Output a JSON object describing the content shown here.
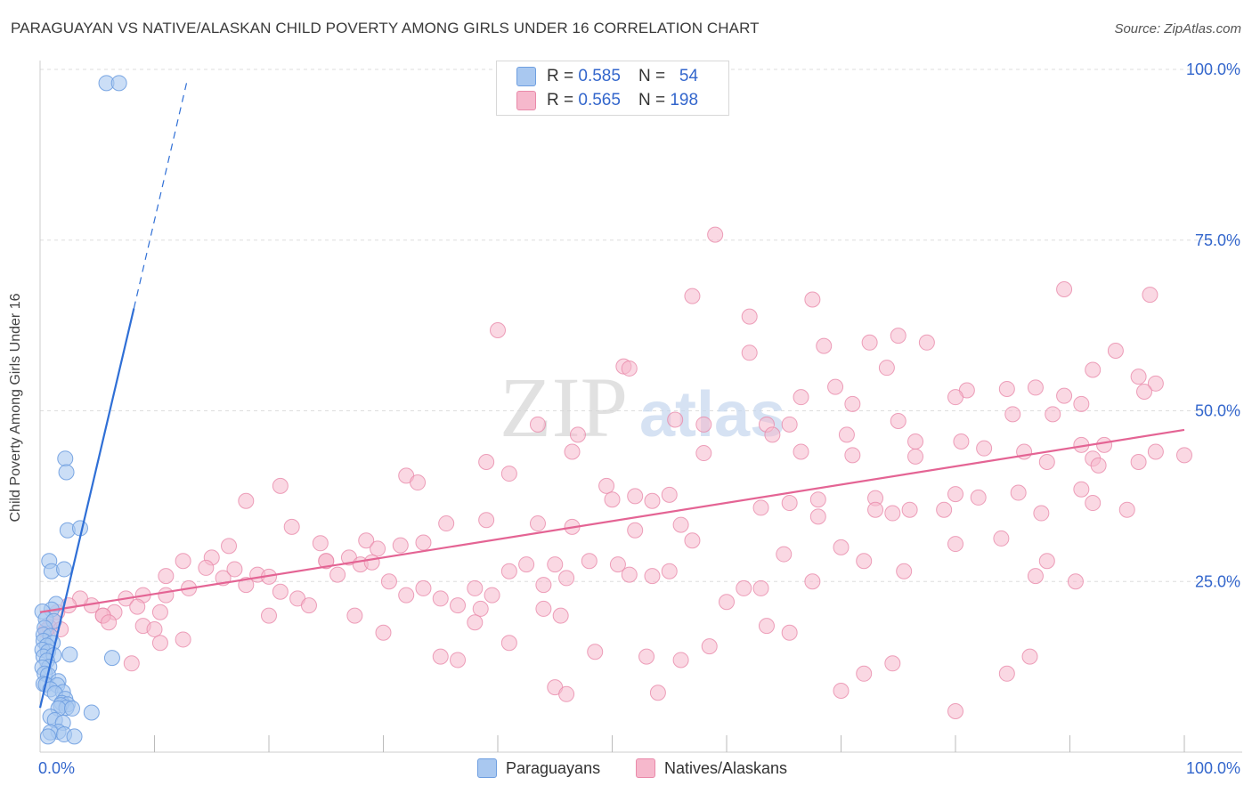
{
  "title": "PARAGUAYAN VS NATIVE/ALASKAN CHILD POVERTY AMONG GIRLS UNDER 16 CORRELATION CHART",
  "source": "Source: ZipAtlas.com",
  "watermark": {
    "zip": "ZIP",
    "atlas": "atlas"
  },
  "legend_top": [
    {
      "r_label": "R =",
      "r_value": "0.585",
      "n_label": "N =",
      "n_value": "54"
    },
    {
      "r_label": "R =",
      "r_value": "0.565",
      "n_label": "N =",
      "n_value": "198"
    }
  ],
  "legend_bottom": [
    "Paraguayans",
    "Natives/Alaskans"
  ],
  "colors": {
    "blue_fill": "#a9c8f0",
    "blue_stroke": "#6f9fe0",
    "blue_line": "#2f6fd6",
    "pink_fill": "#f6b8cc",
    "pink_stroke": "#e98aaa",
    "pink_line": "#e46494",
    "grid": "#dedede",
    "tick_text": "#3366cc"
  },
  "chart_data": {
    "type": "scatter",
    "title": "PARAGUAYAN VS NATIVE/ALASKAN CHILD POVERTY AMONG GIRLS UNDER 16 CORRELATION CHART",
    "xlabel": "",
    "ylabel": "Child Poverty Among Girls Under 16",
    "xlim": [
      0,
      100
    ],
    "ylim": [
      0,
      100
    ],
    "x_tick_labels": [
      "0.0%",
      "100.0%"
    ],
    "y_tick_labels": [
      "25.0%",
      "50.0%",
      "75.0%",
      "100.0%"
    ],
    "y_ticks": [
      25,
      50,
      75,
      100
    ],
    "series": [
      {
        "name": "Paraguayans",
        "r": 0.585,
        "n": 54,
        "trend": {
          "x0": 0.0,
          "y0": 6.5,
          "x1": 8.2,
          "y1": 65.0,
          "dash_x1": 12.8,
          "dash_y1": 98.0
        },
        "points": [
          [
            5.8,
            98.0
          ],
          [
            6.9,
            98.0
          ],
          [
            2.2,
            43.0
          ],
          [
            2.3,
            41.0
          ],
          [
            2.4,
            32.5
          ],
          [
            3.5,
            32.8
          ],
          [
            0.8,
            28.0
          ],
          [
            1.0,
            26.5
          ],
          [
            2.1,
            26.8
          ],
          [
            1.4,
            21.7
          ],
          [
            1.0,
            20.9
          ],
          [
            0.2,
            20.6
          ],
          [
            0.5,
            19.5
          ],
          [
            1.2,
            19.2
          ],
          [
            0.4,
            18.2
          ],
          [
            0.3,
            17.2
          ],
          [
            0.9,
            17.0
          ],
          [
            0.3,
            16.3
          ],
          [
            1.1,
            16.0
          ],
          [
            0.6,
            15.6
          ],
          [
            0.2,
            15.0
          ],
          [
            0.7,
            14.7
          ],
          [
            0.3,
            14.0
          ],
          [
            1.2,
            14.2
          ],
          [
            2.6,
            14.3
          ],
          [
            6.3,
            13.8
          ],
          [
            0.6,
            13.4
          ],
          [
            0.8,
            12.5
          ],
          [
            0.2,
            12.4
          ],
          [
            0.4,
            11.5
          ],
          [
            0.7,
            11.3
          ],
          [
            1.6,
            10.4
          ],
          [
            0.3,
            10.0
          ],
          [
            0.5,
            9.9
          ],
          [
            1.5,
            9.8
          ],
          [
            0.9,
            9.2
          ],
          [
            2.0,
            8.8
          ],
          [
            1.3,
            8.6
          ],
          [
            2.2,
            7.8
          ],
          [
            1.9,
            7.2
          ],
          [
            2.4,
            7.0
          ],
          [
            1.8,
            6.9
          ],
          [
            2.3,
            6.5
          ],
          [
            1.6,
            6.4
          ],
          [
            2.8,
            6.4
          ],
          [
            4.5,
            5.8
          ],
          [
            0.9,
            5.2
          ],
          [
            1.3,
            4.7
          ],
          [
            2.0,
            4.3
          ],
          [
            1.6,
            3.0
          ],
          [
            0.9,
            2.9
          ],
          [
            2.1,
            2.6
          ],
          [
            3.0,
            2.3
          ],
          [
            0.7,
            2.3
          ]
        ]
      },
      {
        "name": "Natives/Alaskans",
        "r": 0.565,
        "n": 198,
        "trend": {
          "x0": 0.0,
          "y0": 20.5,
          "x1": 100.0,
          "y1": 47.2
        },
        "points": [
          [
            59.0,
            75.8
          ],
          [
            57.0,
            66.8
          ],
          [
            97.0,
            67.0
          ],
          [
            67.5,
            66.3
          ],
          [
            89.5,
            67.8
          ],
          [
            62.0,
            63.8
          ],
          [
            40.0,
            61.8
          ],
          [
            75.0,
            61.0
          ],
          [
            72.5,
            60.0
          ],
          [
            77.5,
            60.0
          ],
          [
            68.5,
            59.5
          ],
          [
            62.0,
            58.5
          ],
          [
            94.0,
            58.8
          ],
          [
            51.0,
            56.5
          ],
          [
            51.5,
            56.2
          ],
          [
            92.0,
            56.0
          ],
          [
            74.0,
            56.3
          ],
          [
            97.5,
            54.0
          ],
          [
            96.0,
            55.0
          ],
          [
            69.5,
            53.5
          ],
          [
            81.0,
            53.0
          ],
          [
            84.5,
            53.2
          ],
          [
            87.0,
            53.4
          ],
          [
            96.5,
            52.8
          ],
          [
            89.5,
            52.2
          ],
          [
            66.5,
            52.0
          ],
          [
            80.0,
            52.0
          ],
          [
            91.0,
            51.0
          ],
          [
            85.0,
            49.5
          ],
          [
            88.5,
            49.5
          ],
          [
            71.0,
            51.0
          ],
          [
            55.5,
            48.7
          ],
          [
            58.0,
            48.0
          ],
          [
            63.5,
            48.0
          ],
          [
            65.5,
            48.0
          ],
          [
            75.0,
            48.5
          ],
          [
            43.5,
            48.0
          ],
          [
            47.0,
            46.5
          ],
          [
            64.0,
            46.5
          ],
          [
            70.5,
            46.5
          ],
          [
            76.5,
            45.5
          ],
          [
            80.5,
            45.5
          ],
          [
            82.5,
            44.5
          ],
          [
            86.0,
            44.0
          ],
          [
            91.0,
            45.0
          ],
          [
            93.0,
            45.0
          ],
          [
            97.5,
            44.0
          ],
          [
            100.0,
            43.5
          ],
          [
            92.0,
            43.0
          ],
          [
            96.0,
            42.5
          ],
          [
            88.0,
            42.5
          ],
          [
            92.5,
            42.0
          ],
          [
            71.0,
            43.5
          ],
          [
            76.5,
            43.3
          ],
          [
            66.5,
            44.0
          ],
          [
            58.0,
            43.8
          ],
          [
            39.0,
            42.5
          ],
          [
            46.5,
            44.0
          ],
          [
            32.0,
            40.5
          ],
          [
            41.0,
            40.8
          ],
          [
            33.0,
            39.5
          ],
          [
            49.5,
            39.0
          ],
          [
            52.0,
            37.5
          ],
          [
            53.5,
            36.8
          ],
          [
            55.0,
            37.7
          ],
          [
            50.0,
            37.0
          ],
          [
            68.0,
            37.0
          ],
          [
            73.0,
            37.2
          ],
          [
            80.0,
            37.8
          ],
          [
            82.0,
            37.3
          ],
          [
            85.5,
            38.0
          ],
          [
            91.0,
            38.5
          ],
          [
            95.0,
            35.5
          ],
          [
            92.0,
            36.5
          ],
          [
            87.5,
            35.0
          ],
          [
            79.0,
            35.5
          ],
          [
            76.0,
            35.5
          ],
          [
            74.5,
            35.0
          ],
          [
            63.0,
            35.8
          ],
          [
            65.5,
            36.5
          ],
          [
            68.0,
            34.5
          ],
          [
            73.0,
            35.5
          ],
          [
            56.0,
            33.3
          ],
          [
            52.0,
            32.5
          ],
          [
            46.5,
            33.0
          ],
          [
            43.5,
            33.5
          ],
          [
            39.0,
            34.0
          ],
          [
            35.5,
            33.5
          ],
          [
            33.5,
            30.7
          ],
          [
            31.5,
            30.3
          ],
          [
            28.5,
            31.0
          ],
          [
            29.5,
            29.8
          ],
          [
            27.0,
            28.5
          ],
          [
            25.0,
            28.0
          ],
          [
            24.5,
            30.6
          ],
          [
            22.0,
            33.0
          ],
          [
            21.0,
            39.0
          ],
          [
            18.0,
            36.8
          ],
          [
            16.5,
            30.2
          ],
          [
            15.0,
            28.5
          ],
          [
            14.5,
            27.0
          ],
          [
            12.5,
            28.0
          ],
          [
            11.0,
            25.8
          ],
          [
            13.0,
            24.0
          ],
          [
            11.0,
            23.0
          ],
          [
            9.0,
            23.0
          ],
          [
            7.5,
            22.5
          ],
          [
            8.5,
            21.3
          ],
          [
            6.5,
            20.5
          ],
          [
            5.5,
            20.0
          ],
          [
            4.5,
            21.5
          ],
          [
            3.5,
            22.5
          ],
          [
            2.5,
            21.5
          ],
          [
            1.5,
            20.5
          ],
          [
            1.2,
            19.2
          ],
          [
            0.8,
            18.3
          ],
          [
            0.5,
            17.8
          ],
          [
            1.8,
            18.0
          ],
          [
            10.5,
            20.5
          ],
          [
            9.0,
            18.5
          ],
          [
            10.0,
            18.0
          ],
          [
            16.0,
            25.5
          ],
          [
            17.0,
            26.8
          ],
          [
            18.0,
            24.5
          ],
          [
            19.0,
            26.0
          ],
          [
            20.0,
            25.7
          ],
          [
            21.0,
            23.5
          ],
          [
            22.5,
            22.5
          ],
          [
            23.5,
            21.5
          ],
          [
            25.0,
            28.0
          ],
          [
            26.0,
            26.0
          ],
          [
            28.0,
            27.5
          ],
          [
            29.0,
            27.8
          ],
          [
            30.5,
            25.0
          ],
          [
            32.0,
            23.0
          ],
          [
            33.5,
            24.0
          ],
          [
            35.0,
            22.5
          ],
          [
            36.5,
            21.5
          ],
          [
            38.0,
            24.0
          ],
          [
            39.5,
            23.0
          ],
          [
            41.0,
            26.5
          ],
          [
            42.5,
            27.5
          ],
          [
            44.0,
            24.5
          ],
          [
            45.0,
            27.5
          ],
          [
            46.0,
            25.5
          ],
          [
            48.0,
            28.0
          ],
          [
            50.5,
            27.5
          ],
          [
            51.5,
            26.0
          ],
          [
            53.5,
            25.8
          ],
          [
            55.0,
            26.5
          ],
          [
            57.0,
            31.0
          ],
          [
            61.5,
            24.0
          ],
          [
            63.0,
            24.0
          ],
          [
            60.0,
            22.0
          ],
          [
            65.0,
            29.0
          ],
          [
            67.5,
            25.0
          ],
          [
            70.0,
            30.0
          ],
          [
            72.0,
            28.0
          ],
          [
            75.5,
            26.5
          ],
          [
            80.0,
            30.5
          ],
          [
            84.0,
            31.3
          ],
          [
            88.0,
            28.0
          ],
          [
            90.5,
            25.0
          ],
          [
            87.0,
            25.8
          ],
          [
            12.5,
            16.5
          ],
          [
            10.5,
            16.0
          ],
          [
            8.0,
            13.0
          ],
          [
            5.5,
            20.0
          ],
          [
            6.0,
            19.0
          ],
          [
            20.0,
            20.0
          ],
          [
            27.5,
            20.0
          ],
          [
            38.5,
            21.0
          ],
          [
            38.0,
            19.0
          ],
          [
            30.0,
            17.5
          ],
          [
            41.0,
            16.0
          ],
          [
            45.5,
            20.0
          ],
          [
            44.0,
            21.0
          ],
          [
            48.5,
            14.7
          ],
          [
            53.0,
            14.0
          ],
          [
            58.5,
            15.5
          ],
          [
            63.5,
            18.5
          ],
          [
            65.5,
            17.5
          ],
          [
            72.0,
            11.5
          ],
          [
            74.5,
            13.0
          ],
          [
            80.0,
            6.0
          ],
          [
            84.5,
            11.5
          ],
          [
            70.0,
            9.0
          ],
          [
            54.0,
            8.7
          ],
          [
            45.0,
            9.5
          ],
          [
            46.0,
            8.5
          ],
          [
            56.0,
            13.5
          ],
          [
            36.5,
            13.5
          ],
          [
            35.0,
            14.0
          ],
          [
            86.5,
            14.0
          ]
        ]
      }
    ]
  }
}
